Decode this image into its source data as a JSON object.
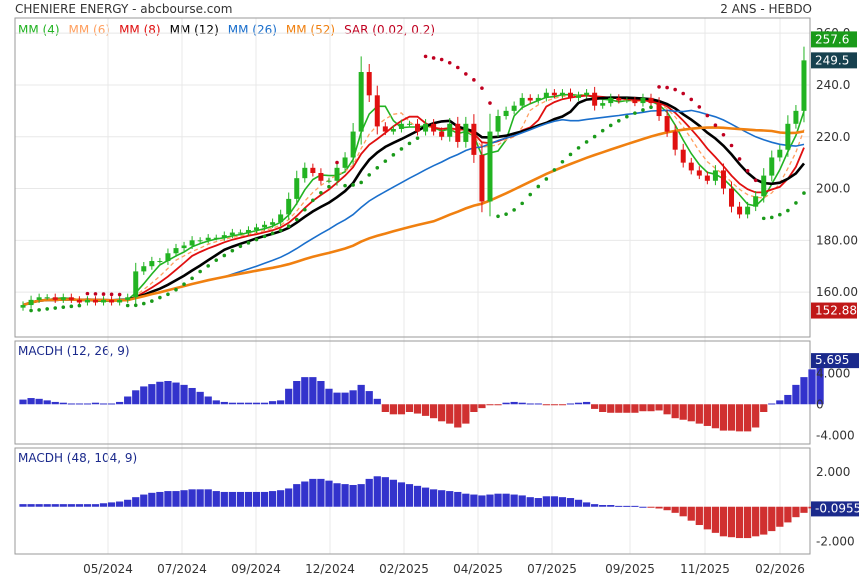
{
  "header": {
    "left": "CHENIERE ENERGY - abcbourse.com",
    "right": "2 ANS - HEBDO"
  },
  "legend": [
    {
      "label": "MM (4)",
      "color": "#22b322"
    },
    {
      "label": "MM (6)",
      "color": "#ffa060"
    },
    {
      "label": "MM (8)",
      "color": "#e01010"
    },
    {
      "label": "MM (12)",
      "color": "#000000"
    },
    {
      "label": "MM (26)",
      "color": "#1a6fcc"
    },
    {
      "label": "MM (52)",
      "color": "#f08010"
    },
    {
      "label": "SAR (0.02, 0.2)",
      "color": "#c00020"
    }
  ],
  "colors": {
    "up": "#22b322",
    "down": "#e01010",
    "pos": "#3333cc",
    "neg": "#d03030",
    "sar_low": "#1a9a1a",
    "sar_high": "#c00020",
    "grid": "#e8e8e8",
    "frame": "#9a9a9a"
  },
  "x_labels": [
    "05/2024",
    "07/2024",
    "09/2024",
    "12/2024",
    "02/2025",
    "04/2025",
    "07/2025",
    "09/2025",
    "11/2025",
    "02/2026"
  ],
  "macd1": {
    "label": "MACDH (12, 26, 9)",
    "ticks": [
      "4.000",
      "0",
      "-4.000"
    ],
    "last": "5.695"
  },
  "macd2": {
    "label": "MACDH (48, 104, 9)",
    "ticks": [
      "2.000",
      "0",
      "-2.000"
    ],
    "last": "-0.0955"
  },
  "price_tags": {
    "high": "257.6",
    "last": "249.5",
    "low": "152.88"
  },
  "chart_data": [
    {
      "type": "candlestick",
      "title": "CHENIERE ENERGY",
      "ylim": [
        150,
        262
      ],
      "y_ticks": [
        "260.0",
        "240.0",
        "220.0",
        "200.0",
        "180.00",
        "160.00"
      ],
      "x_axis": "weekly, 2024-03 to 2026-03",
      "moving_averages": [
        4,
        6,
        8,
        12,
        26,
        52
      ],
      "close": [
        155,
        157,
        158,
        158,
        157,
        158,
        157,
        156,
        157,
        156,
        157,
        156,
        157,
        158,
        168,
        170,
        172,
        172,
        175,
        177,
        178,
        180,
        180,
        181,
        181,
        182,
        183,
        183,
        184,
        185,
        186,
        187,
        190,
        196,
        204,
        208,
        206,
        203,
        203,
        208,
        212,
        222,
        245,
        236,
        224,
        222,
        223,
        225,
        225,
        222,
        225,
        222,
        220,
        225,
        218,
        225,
        213,
        195,
        222,
        228,
        230,
        232,
        235,
        234,
        235,
        237,
        236,
        237,
        235,
        236,
        237,
        232,
        233,
        235,
        234,
        234,
        233,
        235,
        233,
        228,
        222,
        215,
        210,
        207,
        205,
        203,
        207,
        200,
        193,
        190,
        193,
        197,
        205,
        212,
        215,
        225,
        230,
        249.5
      ],
      "sar_points": "dotted series below/above price, switching sides at trend reversals"
    },
    {
      "type": "bar",
      "title": "MACDH (12, 26, 9)",
      "ylim": [
        -5,
        7
      ],
      "values": [
        0.6,
        0.8,
        0.7,
        0.5,
        0.3,
        0.2,
        0.1,
        0.1,
        0.1,
        0.2,
        0.1,
        0.1,
        0.3,
        1.0,
        1.8,
        2.3,
        2.6,
        2.9,
        3.0,
        2.8,
        2.5,
        2.1,
        1.6,
        1.0,
        0.5,
        0.3,
        0.2,
        0.2,
        0.2,
        0.2,
        0.2,
        0.4,
        0.5,
        2.0,
        3.0,
        3.5,
        3.5,
        3.0,
        2.0,
        1.5,
        1.5,
        1.8,
        2.5,
        1.7,
        0.7,
        -1.0,
        -1.3,
        -1.3,
        -1.0,
        -1.2,
        -1.5,
        -1.8,
        -2.2,
        -2.5,
        -3.0,
        -2.5,
        -1.0,
        -0.5,
        -0.1,
        -0.1,
        0.2,
        0.3,
        0.2,
        0.1,
        0.1,
        -0.1,
        -0.1,
        -0.1,
        0.1,
        0.2,
        0.3,
        -0.6,
        -1.0,
        -1.1,
        -1.1,
        -1.1,
        -1.1,
        -0.9,
        -0.9,
        -0.8,
        -1.3,
        -1.8,
        -2.0,
        -2.2,
        -2.5,
        -2.8,
        -3.1,
        -3.4,
        -3.4,
        -3.5,
        -3.5,
        -3.0,
        -1.0,
        0.1,
        0.5,
        1.2,
        2.5,
        3.5,
        4.5,
        5.695
      ]
    },
    {
      "type": "bar",
      "title": "MACDH (48, 104, 9)",
      "ylim": [
        -2.6,
        2.8
      ],
      "values": [
        0.15,
        0.15,
        0.15,
        0.15,
        0.15,
        0.15,
        0.15,
        0.15,
        0.15,
        0.15,
        0.2,
        0.25,
        0.3,
        0.4,
        0.55,
        0.7,
        0.8,
        0.85,
        0.9,
        0.9,
        0.95,
        1.0,
        1.0,
        1.0,
        0.9,
        0.85,
        0.85,
        0.85,
        0.85,
        0.85,
        0.85,
        0.9,
        0.95,
        1.05,
        1.3,
        1.45,
        1.6,
        1.6,
        1.5,
        1.35,
        1.3,
        1.25,
        1.3,
        1.6,
        1.75,
        1.7,
        1.55,
        1.4,
        1.3,
        1.2,
        1.1,
        1.0,
        0.95,
        0.9,
        0.85,
        0.75,
        0.7,
        0.65,
        0.7,
        0.75,
        0.75,
        0.7,
        0.65,
        0.55,
        0.5,
        0.6,
        0.6,
        0.55,
        0.5,
        0.4,
        0.25,
        0.15,
        0.1,
        0.1,
        0.05,
        0.05,
        0.05,
        0.0,
        -0.05,
        -0.1,
        -0.2,
        -0.35,
        -0.55,
        -0.8,
        -1.05,
        -1.3,
        -1.5,
        -1.7,
        -1.75,
        -1.8,
        -1.8,
        -1.7,
        -1.6,
        -1.4,
        -1.15,
        -0.9,
        -0.6,
        -0.35,
        -0.0955
      ]
    }
  ]
}
